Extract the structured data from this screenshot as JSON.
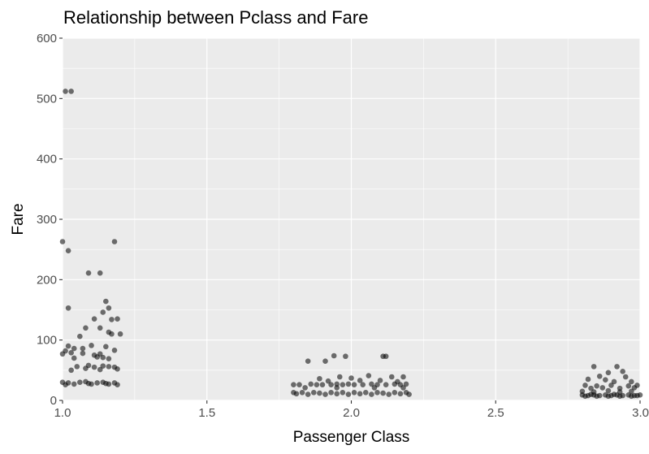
{
  "chart_data": {
    "type": "scatter",
    "title": "Relationship between Pclass and Fare",
    "xlabel": "Passenger Class",
    "ylabel": "Fare",
    "xlim": [
      1.0,
      3.0
    ],
    "ylim": [
      0,
      600
    ],
    "x_ticks": [
      1.0,
      1.5,
      2.0,
      2.5,
      3.0
    ],
    "x_tick_labels": [
      "1.0",
      "1.5",
      "2.0",
      "2.5",
      "3.0"
    ],
    "y_ticks": [
      0,
      100,
      200,
      300,
      400,
      500,
      600
    ],
    "y_tick_labels": [
      "0",
      "100",
      "200",
      "300",
      "400",
      "500",
      "600"
    ],
    "grid": true,
    "legend": "none",
    "colors": {
      "panel": "#ebebeb",
      "grid": "#ffffff",
      "point": "#000000",
      "text": "#000000",
      "tick_text": "#4d4d4d"
    },
    "points": [
      {
        "x": 1.01,
        "y": 512
      },
      {
        "x": 1.03,
        "y": 512
      },
      {
        "x": 1.0,
        "y": 263
      },
      {
        "x": 1.02,
        "y": 248
      },
      {
        "x": 1.18,
        "y": 263
      },
      {
        "x": 1.09,
        "y": 211
      },
      {
        "x": 1.13,
        "y": 211
      },
      {
        "x": 1.02,
        "y": 153
      },
      {
        "x": 1.15,
        "y": 164
      },
      {
        "x": 1.16,
        "y": 153
      },
      {
        "x": 1.14,
        "y": 146
      },
      {
        "x": 1.11,
        "y": 135
      },
      {
        "x": 1.19,
        "y": 135
      },
      {
        "x": 1.17,
        "y": 134
      },
      {
        "x": 1.08,
        "y": 120
      },
      {
        "x": 1.13,
        "y": 120
      },
      {
        "x": 1.16,
        "y": 113
      },
      {
        "x": 1.17,
        "y": 110
      },
      {
        "x": 1.2,
        "y": 110
      },
      {
        "x": 1.06,
        "y": 106
      },
      {
        "x": 1.1,
        "y": 91
      },
      {
        "x": 1.02,
        "y": 90
      },
      {
        "x": 1.04,
        "y": 86
      },
      {
        "x": 1.07,
        "y": 86
      },
      {
        "x": 1.15,
        "y": 89
      },
      {
        "x": 1.18,
        "y": 83
      },
      {
        "x": 1.01,
        "y": 82
      },
      {
        "x": 1.03,
        "y": 79
      },
      {
        "x": 1.07,
        "y": 78
      },
      {
        "x": 1.0,
        "y": 77
      },
      {
        "x": 1.13,
        "y": 77
      },
      {
        "x": 1.11,
        "y": 75
      },
      {
        "x": 1.12,
        "y": 72
      },
      {
        "x": 1.14,
        "y": 71
      },
      {
        "x": 1.04,
        "y": 70
      },
      {
        "x": 1.16,
        "y": 69
      },
      {
        "x": 1.05,
        "y": 56
      },
      {
        "x": 1.09,
        "y": 58
      },
      {
        "x": 1.11,
        "y": 55
      },
      {
        "x": 1.14,
        "y": 57
      },
      {
        "x": 1.16,
        "y": 56
      },
      {
        "x": 1.18,
        "y": 55
      },
      {
        "x": 1.08,
        "y": 53
      },
      {
        "x": 1.19,
        "y": 52
      },
      {
        "x": 1.13,
        "y": 51
      },
      {
        "x": 1.03,
        "y": 50
      },
      {
        "x": 1.0,
        "y": 30
      },
      {
        "x": 1.02,
        "y": 29
      },
      {
        "x": 1.04,
        "y": 27
      },
      {
        "x": 1.06,
        "y": 30
      },
      {
        "x": 1.08,
        "y": 31
      },
      {
        "x": 1.1,
        "y": 27
      },
      {
        "x": 1.12,
        "y": 29
      },
      {
        "x": 1.14,
        "y": 30
      },
      {
        "x": 1.16,
        "y": 27
      },
      {
        "x": 1.18,
        "y": 29
      },
      {
        "x": 1.01,
        "y": 26
      },
      {
        "x": 1.19,
        "y": 26
      },
      {
        "x": 1.09,
        "y": 28
      },
      {
        "x": 1.15,
        "y": 28
      },
      {
        "x": 1.94,
        "y": 74
      },
      {
        "x": 1.98,
        "y": 73
      },
      {
        "x": 2.11,
        "y": 73
      },
      {
        "x": 2.12,
        "y": 73
      },
      {
        "x": 1.85,
        "y": 65
      },
      {
        "x": 1.91,
        "y": 65
      },
      {
        "x": 2.06,
        "y": 41
      },
      {
        "x": 2.14,
        "y": 39
      },
      {
        "x": 2.18,
        "y": 39
      },
      {
        "x": 1.96,
        "y": 39
      },
      {
        "x": 2.0,
        "y": 37
      },
      {
        "x": 1.89,
        "y": 36
      },
      {
        "x": 2.03,
        "y": 33
      },
      {
        "x": 2.1,
        "y": 33
      },
      {
        "x": 1.92,
        "y": 32
      },
      {
        "x": 2.16,
        "y": 31
      },
      {
        "x": 1.8,
        "y": 26
      },
      {
        "x": 1.82,
        "y": 26
      },
      {
        "x": 1.86,
        "y": 27
      },
      {
        "x": 1.88,
        "y": 26
      },
      {
        "x": 1.9,
        "y": 26
      },
      {
        "x": 1.93,
        "y": 26
      },
      {
        "x": 1.95,
        "y": 27
      },
      {
        "x": 1.97,
        "y": 26
      },
      {
        "x": 1.99,
        "y": 27
      },
      {
        "x": 2.01,
        "y": 26
      },
      {
        "x": 2.04,
        "y": 26
      },
      {
        "x": 2.07,
        "y": 27
      },
      {
        "x": 2.09,
        "y": 26
      },
      {
        "x": 2.12,
        "y": 26
      },
      {
        "x": 2.15,
        "y": 27
      },
      {
        "x": 2.17,
        "y": 26
      },
      {
        "x": 2.19,
        "y": 27
      },
      {
        "x": 1.84,
        "y": 21
      },
      {
        "x": 1.95,
        "y": 21
      },
      {
        "x": 2.08,
        "y": 21
      },
      {
        "x": 2.18,
        "y": 21
      },
      {
        "x": 1.8,
        "y": 13
      },
      {
        "x": 1.81,
        "y": 11
      },
      {
        "x": 1.83,
        "y": 13
      },
      {
        "x": 1.85,
        "y": 10
      },
      {
        "x": 1.87,
        "y": 13
      },
      {
        "x": 1.89,
        "y": 12
      },
      {
        "x": 1.91,
        "y": 10
      },
      {
        "x": 1.93,
        "y": 13
      },
      {
        "x": 1.95,
        "y": 11
      },
      {
        "x": 1.97,
        "y": 13
      },
      {
        "x": 1.99,
        "y": 10
      },
      {
        "x": 2.01,
        "y": 13
      },
      {
        "x": 2.03,
        "y": 11
      },
      {
        "x": 2.05,
        "y": 13
      },
      {
        "x": 2.07,
        "y": 10
      },
      {
        "x": 2.09,
        "y": 13
      },
      {
        "x": 2.11,
        "y": 12
      },
      {
        "x": 2.13,
        "y": 10
      },
      {
        "x": 2.15,
        "y": 13
      },
      {
        "x": 2.17,
        "y": 11
      },
      {
        "x": 2.19,
        "y": 13
      },
      {
        "x": 2.2,
        "y": 10
      },
      {
        "x": 2.84,
        "y": 56
      },
      {
        "x": 2.92,
        "y": 56
      },
      {
        "x": 2.94,
        "y": 48
      },
      {
        "x": 2.89,
        "y": 46
      },
      {
        "x": 2.86,
        "y": 40
      },
      {
        "x": 2.82,
        "y": 35
      },
      {
        "x": 2.88,
        "y": 34
      },
      {
        "x": 2.95,
        "y": 39
      },
      {
        "x": 2.91,
        "y": 31
      },
      {
        "x": 2.97,
        "y": 31
      },
      {
        "x": 2.81,
        "y": 25
      },
      {
        "x": 2.85,
        "y": 24
      },
      {
        "x": 2.9,
        "y": 25
      },
      {
        "x": 2.96,
        "y": 24
      },
      {
        "x": 2.99,
        "y": 25
      },
      {
        "x": 2.83,
        "y": 20
      },
      {
        "x": 2.87,
        "y": 21
      },
      {
        "x": 2.93,
        "y": 20
      },
      {
        "x": 2.98,
        "y": 21
      },
      {
        "x": 2.8,
        "y": 15
      },
      {
        "x": 2.84,
        "y": 14
      },
      {
        "x": 2.89,
        "y": 16
      },
      {
        "x": 2.93,
        "y": 14
      },
      {
        "x": 2.97,
        "y": 15
      },
      {
        "x": 2.8,
        "y": 9
      },
      {
        "x": 2.82,
        "y": 8
      },
      {
        "x": 2.84,
        "y": 9
      },
      {
        "x": 2.86,
        "y": 8
      },
      {
        "x": 2.88,
        "y": 9
      },
      {
        "x": 2.9,
        "y": 8
      },
      {
        "x": 2.92,
        "y": 9
      },
      {
        "x": 2.94,
        "y": 8
      },
      {
        "x": 2.96,
        "y": 9
      },
      {
        "x": 2.98,
        "y": 8
      },
      {
        "x": 3.0,
        "y": 9
      },
      {
        "x": 2.81,
        "y": 7
      },
      {
        "x": 2.85,
        "y": 7
      },
      {
        "x": 2.89,
        "y": 7
      },
      {
        "x": 2.93,
        "y": 7
      },
      {
        "x": 2.97,
        "y": 7
      },
      {
        "x": 2.99,
        "y": 8
      },
      {
        "x": 2.83,
        "y": 10
      },
      {
        "x": 2.91,
        "y": 10
      }
    ]
  }
}
